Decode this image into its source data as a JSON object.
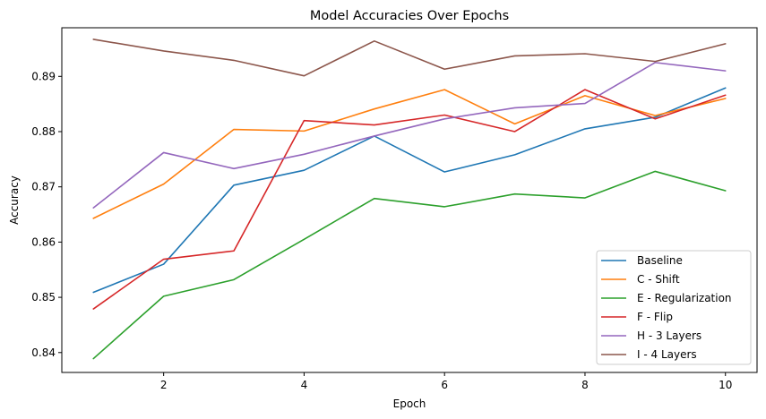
{
  "chart_data": {
    "type": "line",
    "title": "Model Accuracies Over Epochs",
    "xlabel": "Epoch",
    "ylabel": "Accuracy",
    "xlim": [
      0.55,
      10.45
    ],
    "ylim": [
      0.8364,
      0.8988
    ],
    "xticks": [
      2,
      4,
      6,
      8,
      10
    ],
    "yticks": [
      0.84,
      0.85,
      0.86,
      0.87,
      0.88,
      0.89
    ],
    "ytick_labels": [
      "0.84",
      "0.85",
      "0.86",
      "0.87",
      "0.88",
      "0.89"
    ],
    "grid": false,
    "legend_position": "lower-right",
    "x": [
      1,
      2,
      3,
      4,
      5,
      6,
      7,
      8,
      9,
      10
    ],
    "series": [
      {
        "name": "Baseline",
        "color": "#1f77b4",
        "values": [
          0.8509,
          0.856,
          0.8703,
          0.873,
          0.8792,
          0.8727,
          0.8758,
          0.8805,
          0.8826,
          0.8879
        ]
      },
      {
        "name": "C - Shift",
        "color": "#ff7f0e",
        "values": [
          0.8643,
          0.8705,
          0.8804,
          0.8801,
          0.8841,
          0.8876,
          0.8814,
          0.8865,
          0.8829,
          0.886
        ]
      },
      {
        "name": "E - Regularization",
        "color": "#2ca02c",
        "values": [
          0.8389,
          0.8502,
          0.8532,
          0.8605,
          0.8679,
          0.8664,
          0.8687,
          0.868,
          0.8728,
          0.8693
        ]
      },
      {
        "name": "F - Flip",
        "color": "#d62728",
        "values": [
          0.8479,
          0.8569,
          0.8584,
          0.882,
          0.8812,
          0.883,
          0.88,
          0.8876,
          0.8823,
          0.8866
        ]
      },
      {
        "name": "H - 3 Layers",
        "color": "#9467bd",
        "values": [
          0.8662,
          0.8762,
          0.8733,
          0.8759,
          0.8792,
          0.8823,
          0.8843,
          0.8851,
          0.8925,
          0.891
        ]
      },
      {
        "name": "I - 4 Layers",
        "color": "#8c564b",
        "values": [
          0.8967,
          0.8946,
          0.8929,
          0.8901,
          0.8964,
          0.8913,
          0.8937,
          0.8941,
          0.8927,
          0.8959
        ]
      }
    ]
  }
}
